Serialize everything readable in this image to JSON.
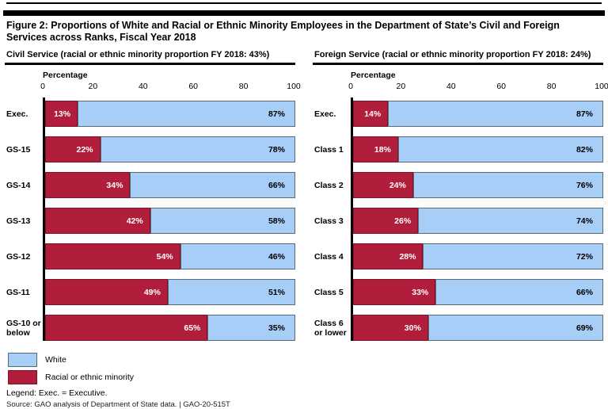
{
  "figure": {
    "title": "Figure 2: Proportions of White and Racial or Ethnic Minority Employees in the Department of State’s Civil and Foreign Services across Ranks, Fiscal Year 2018"
  },
  "colors": {
    "white_fill": "#A6CEF7",
    "white_border": "#5A6878",
    "minority_fill": "#B01E3C",
    "minority_border": "#7F1227",
    "axis_line": "#000000"
  },
  "legend": {
    "items": [
      {
        "label": "White",
        "color_key": "white"
      },
      {
        "label": "Racial or ethnic minority",
        "color_key": "minority"
      }
    ]
  },
  "notes": {
    "legend_note": "Legend: Exec. = Executive.",
    "source": "Source: GAO analysis of Department of State data.  |  GAO-20-515T"
  },
  "chart_data": [
    {
      "type": "bar",
      "orientation": "horizontal",
      "stacked": true,
      "title": "Civil Service (racial or ethnic minority proportion FY 2018: 43%)",
      "xlabel": "Percentage",
      "xlim": [
        0,
        100
      ],
      "xticks": [
        0,
        20,
        40,
        60,
        80,
        100
      ],
      "grid": false,
      "categories": [
        "Exec.",
        "GS-15",
        "GS-14",
        "GS-13",
        "GS-12",
        "GS-11",
        "GS-10 or below"
      ],
      "series": [
        {
          "name": "Racial or ethnic minority",
          "values": [
            13,
            22,
            34,
            42,
            54,
            49,
            65
          ]
        },
        {
          "name": "White",
          "values": [
            87,
            78,
            66,
            58,
            46,
            51,
            35
          ]
        }
      ]
    },
    {
      "type": "bar",
      "orientation": "horizontal",
      "stacked": true,
      "title": "Foreign Service (racial or ethnic minority proportion FY 2018: 24%)",
      "xlabel": "Percentage",
      "xlim": [
        0,
        100
      ],
      "xticks": [
        0,
        20,
        40,
        60,
        80,
        100
      ],
      "grid": false,
      "categories": [
        "Exec.",
        "Class 1",
        "Class 2",
        "Class 3",
        "Class 4",
        "Class 5",
        "Class 6 or lower"
      ],
      "series": [
        {
          "name": "Racial or ethnic minority",
          "values": [
            14,
            18,
            24,
            26,
            28,
            33,
            30
          ]
        },
        {
          "name": "White",
          "values": [
            87,
            82,
            76,
            74,
            72,
            66,
            69
          ]
        }
      ]
    }
  ]
}
